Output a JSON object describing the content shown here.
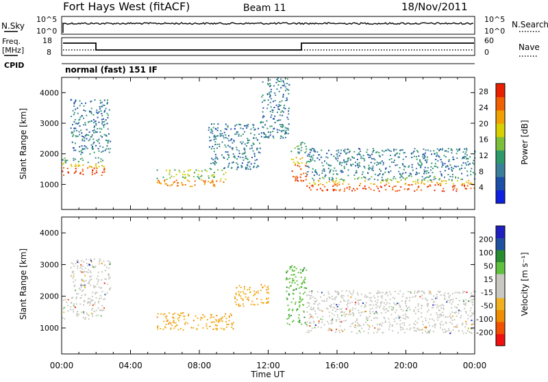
{
  "header": {
    "station": "Fort Hays West (fitACF)",
    "beam": "Beam 11",
    "date": "18/Nov/2011"
  },
  "top_panels": {
    "nsky_label": "N.Sky",
    "nsky_ticks": [
      "10^5",
      "10^0"
    ],
    "nsearch_label": "N.Search",
    "nsearch_ticks": [
      "10^5",
      "10^0"
    ],
    "freq_label_1": "Freq.",
    "freq_label_2": "[MHz]",
    "freq_ticks": [
      "18",
      "8"
    ],
    "nave_label": "Nave",
    "nave_ticks": [
      "60",
      "0"
    ],
    "cpid_label": "CPID",
    "cpid_text": "normal (fast) 151 IF"
  },
  "colors": {
    "power_scale": [
      "#1020e0",
      "#1e4fa8",
      "#3b7f9b",
      "#2e9a6a",
      "#7cbf3a",
      "#d8d000",
      "#f0a000",
      "#f06000",
      "#e82000"
    ],
    "velocity_scale": [
      "#f01010",
      "#f05000",
      "#f08c00",
      "#f0b020",
      "#c8c8c0",
      "#c8c8c0",
      "#60c040",
      "#2a8c30",
      "#2050a0",
      "#2020c0"
    ]
  },
  "chart_data": [
    {
      "type": "heatmap",
      "name_panel": "power",
      "ylabel": "Slant Range [km]",
      "ylim": [
        180,
        4500
      ],
      "yticks": [
        "1000",
        "2000",
        "3000",
        "4000"
      ],
      "xlim": [
        0,
        24
      ],
      "xtick_labels": [
        "00:00",
        "04:00",
        "08:00",
        "12:00",
        "16:00",
        "20:00",
        "00:00"
      ],
      "colorbar_label": "Power [dB]",
      "colorbar_ticks": [
        "4",
        "8",
        "12",
        "16",
        "20",
        "24",
        "28"
      ],
      "colorbar_range": [
        0,
        30
      ],
      "echo_regions": [
        {
          "t": [
            0.0,
            2.5
          ],
          "r": [
            1300,
            1900
          ],
          "level": "high"
        },
        {
          "t": [
            0.5,
            2.8
          ],
          "r": [
            2000,
            3800
          ],
          "level": "low"
        },
        {
          "t": [
            5.5,
            9.5
          ],
          "r": [
            950,
            1500
          ],
          "level": "mid"
        },
        {
          "t": [
            8.5,
            11.5
          ],
          "r": [
            1500,
            3000
          ],
          "level": "low"
        },
        {
          "t": [
            11.5,
            13.2
          ],
          "r": [
            2500,
            4500
          ],
          "level": "low"
        },
        {
          "t": [
            13.3,
            14.2
          ],
          "r": [
            1100,
            2400
          ],
          "level": "high"
        },
        {
          "t": [
            14.2,
            24.0
          ],
          "r": [
            800,
            1300
          ],
          "level": "high"
        },
        {
          "t": [
            14.2,
            24.0
          ],
          "r": [
            1300,
            2200
          ],
          "level": "low"
        }
      ]
    },
    {
      "type": "heatmap",
      "name_panel": "velocity",
      "ylabel": "Slant Range [km]",
      "ylim": [
        180,
        4500
      ],
      "yticks": [
        "1000",
        "2000",
        "3000",
        "4000"
      ],
      "xlim": [
        0,
        24
      ],
      "xtick_labels": [
        "00:00",
        "04:00",
        "08:00",
        "12:00",
        "16:00",
        "20:00",
        "00:00"
      ],
      "xlabel": "Time UT",
      "colorbar_label": "Velocity [m s⁻¹]",
      "colorbar_ticks": [
        "200",
        "100",
        "50",
        "15",
        "-15",
        "-50",
        "-100",
        "-200"
      ],
      "colorbar_range": [
        -250,
        250
      ],
      "echo_regions": [
        {
          "t": [
            0.0,
            2.5
          ],
          "r": [
            1300,
            2000
          ],
          "v": "ground"
        },
        {
          "t": [
            0.5,
            2.8
          ],
          "r": [
            2000,
            3200
          ],
          "v": "ground"
        },
        {
          "t": [
            5.5,
            10.0
          ],
          "r": [
            950,
            1500
          ],
          "v": "-50"
        },
        {
          "t": [
            10.0,
            12.0
          ],
          "r": [
            1700,
            2400
          ],
          "v": "-50"
        },
        {
          "t": [
            13.0,
            14.2
          ],
          "r": [
            1100,
            3000
          ],
          "v": "50"
        },
        {
          "t": [
            14.2,
            24.0
          ],
          "r": [
            850,
            2200
          ],
          "v": "ground"
        }
      ]
    }
  ]
}
